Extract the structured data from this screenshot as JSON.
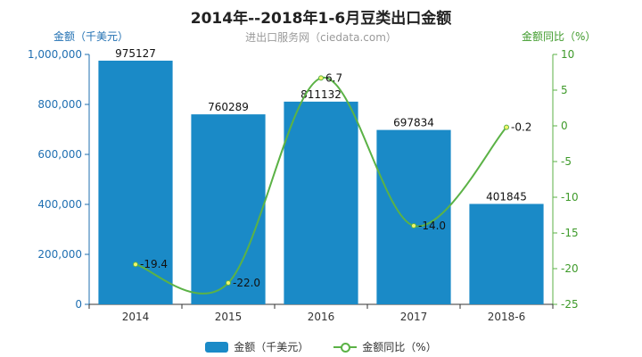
{
  "chart_data": {
    "type": "bar+line",
    "title": "2014年--2018年1-6月豆类出口金额",
    "subtitle": "进出口服务网（ciedata.com）",
    "categories": [
      "2014",
      "2015",
      "2016",
      "2017",
      "2018-6"
    ],
    "series": [
      {
        "name": "金额（千美元）",
        "type": "bar",
        "axis": "left",
        "values": [
          975127,
          760289,
          811132,
          697834,
          401845
        ]
      },
      {
        "name": "金额同比（%）",
        "type": "line",
        "axis": "right",
        "values": [
          -19.4,
          -22.0,
          6.7,
          -14.0,
          -0.2
        ]
      }
    ],
    "ylabel": "金额（千美元）",
    "ylabel_right": "金额同比（%）",
    "ylim": [
      0,
      1000000
    ],
    "ylim_right": [
      -25,
      10
    ],
    "yticks": [
      "0",
      "200,000",
      "400,000",
      "600,000",
      "800,000",
      "1,000,000"
    ],
    "yticks_right": [
      "-25",
      "-20",
      "-15",
      "-10",
      "-5",
      "0",
      "5",
      "10"
    ],
    "bar_labels": [
      "975127",
      "760289",
      "811132",
      "697834",
      "401845"
    ],
    "line_labels": [
      "-19.4",
      "-22.0",
      "6.7",
      "-14.0",
      "-0.2"
    ],
    "legend_position": "bottom",
    "grid": false,
    "colors": {
      "bar": "#1a8ac7",
      "line": "#5bb246",
      "left_axis": "#1f6fb2",
      "right_axis": "#3e9a2a"
    }
  }
}
